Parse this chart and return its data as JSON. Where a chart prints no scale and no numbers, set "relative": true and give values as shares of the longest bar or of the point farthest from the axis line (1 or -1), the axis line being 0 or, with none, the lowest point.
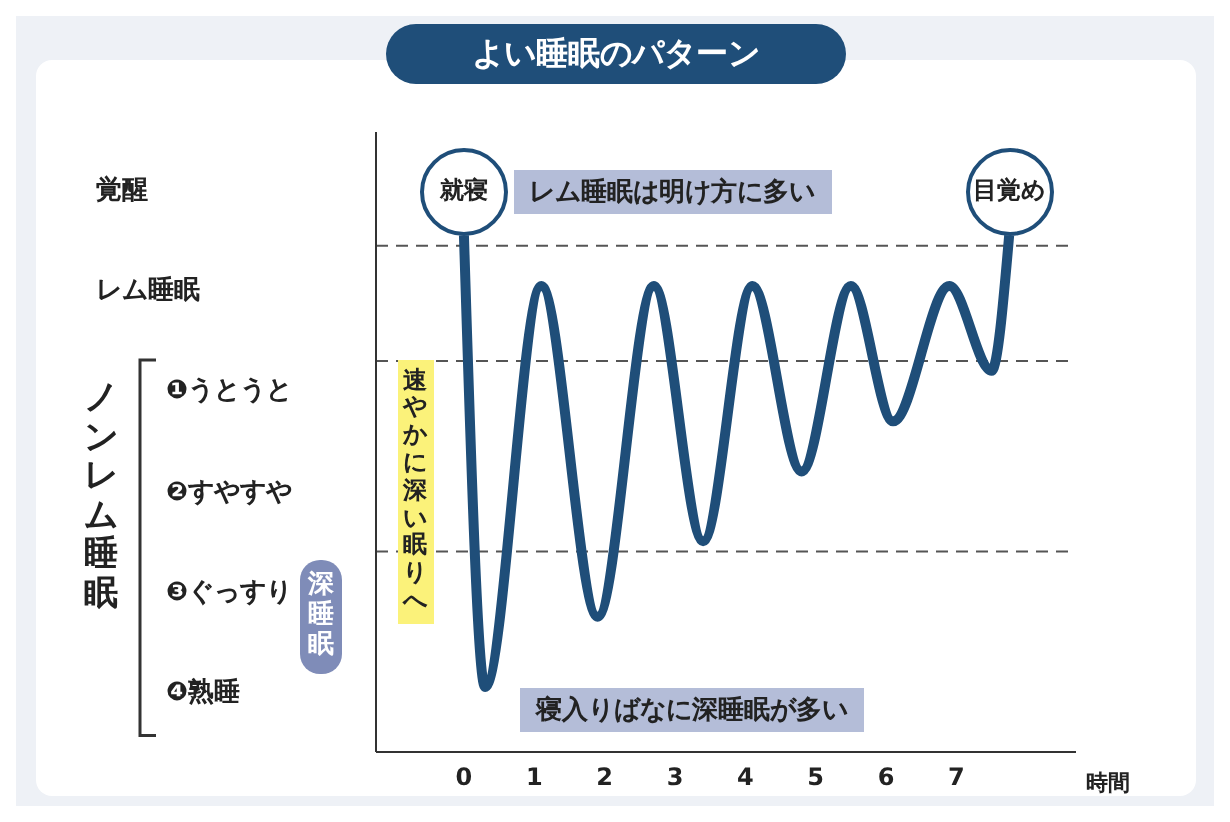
{
  "chart_data": {
    "type": "line",
    "title": "よい睡眠のパターン",
    "xlabel": "時間",
    "relative": true,
    "x": [
      0,
      0.3,
      1.1,
      1.9,
      2.7,
      3.4,
      4.1,
      4.8,
      5.5,
      6.1,
      6.9,
      7.5,
      7.75
    ],
    "series": [
      {
        "color": "#1f4e79",
        "values": [
          1,
          0.126,
          0.902,
          0.262,
          0.902,
          0.408,
          0.902,
          0.543,
          0.902,
          0.64,
          0.902,
          0.738,
          1
        ]
      }
    ],
    "xlim": [
      -1.25,
      8.7
    ],
    "xticks": [
      0,
      1,
      2,
      3,
      4,
      5,
      6,
      7
    ],
    "y_categories": [
      "覚醒",
      "レム睡眠",
      "❶うとうと",
      "❷すやすや",
      "❸ぐっすり",
      "❹熟睡"
    ],
    "ref_lines": [
      {
        "axis": "y",
        "value": 0.98,
        "line_style": "dashed",
        "color": "#555555"
      },
      {
        "axis": "y",
        "value": 0.757,
        "line_style": "dashed",
        "color": "#555555"
      },
      {
        "axis": "y",
        "value": 0.388,
        "line_style": "dashed",
        "color": "#555555"
      }
    ],
    "annotations": [
      "就寝",
      "目覚め",
      "レム睡眠は明け方に多い",
      "寝入りばなに深睡眠が多い",
      "速やかに深い眠りへ",
      "深睡眠",
      "ノンレム睡眠"
    ],
    "grid": false,
    "marker": "none",
    "line_style": "solid"
  }
}
